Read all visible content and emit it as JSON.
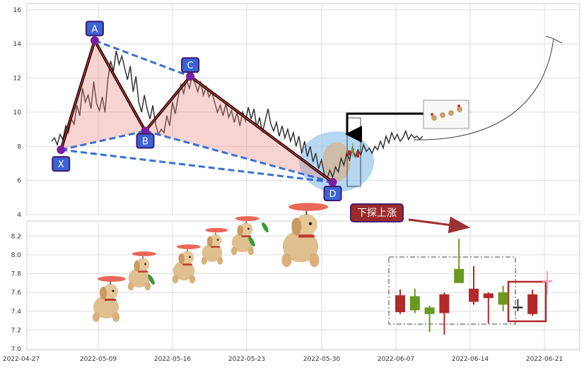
{
  "chart_data": [
    {
      "type": "line",
      "panel": "price",
      "ylim": [
        4,
        16.2
      ],
      "yticks": [
        "4",
        "6",
        "8",
        "10",
        "12",
        "14",
        "16"
      ],
      "series": [
        {
          "values": [
            [
              0.0,
              8.3
            ],
            [
              0.15,
              8.5
            ],
            [
              0.3,
              8.1
            ],
            [
              0.45,
              8.7
            ],
            [
              0.6,
              8.4
            ],
            [
              0.75,
              9.2
            ],
            [
              0.9,
              8.8
            ],
            [
              1.05,
              9.6
            ],
            [
              1.2,
              9.3
            ],
            [
              1.35,
              10.4
            ],
            [
              1.5,
              9.8
            ],
            [
              1.65,
              11.4
            ],
            [
              1.8,
              10.6
            ],
            [
              1.95,
              11.0
            ],
            [
              2.1,
              10.2
            ],
            [
              2.25,
              11.8
            ],
            [
              2.4,
              10.5
            ],
            [
              2.55,
              10.1
            ],
            [
              2.7,
              10.9
            ],
            [
              2.85,
              10.0
            ],
            [
              3.0,
              11.9
            ],
            [
              3.15,
              13.0
            ],
            [
              3.3,
              12.4
            ],
            [
              3.45,
              13.6
            ],
            [
              3.6,
              12.8
            ],
            [
              3.75,
              13.3
            ],
            [
              3.9,
              12.6
            ],
            [
              4.05,
              11.9
            ],
            [
              4.2,
              12.7
            ],
            [
              4.35,
              11.2
            ],
            [
              4.5,
              12.1
            ],
            [
              4.65,
              10.6
            ],
            [
              4.8,
              10.0
            ],
            [
              4.95,
              11.0
            ],
            [
              5.1,
              10.2
            ],
            [
              5.25,
              9.6
            ],
            [
              5.4,
              10.4
            ],
            [
              5.55,
              9.3
            ],
            [
              5.7,
              8.7
            ],
            [
              5.85,
              9.0
            ],
            [
              6.0,
              8.8
            ],
            [
              6.15,
              9.8
            ],
            [
              6.3,
              9.2
            ],
            [
              6.45,
              10.6
            ],
            [
              6.6,
              9.9
            ],
            [
              6.75,
              10.9
            ],
            [
              6.9,
              11.6
            ],
            [
              7.05,
              11.1
            ],
            [
              7.2,
              11.9
            ],
            [
              7.35,
              11.4
            ],
            [
              7.5,
              12.1
            ],
            [
              7.65,
              11.7
            ],
            [
              7.8,
              11.2
            ],
            [
              7.95,
              11.8
            ],
            [
              8.1,
              11.0
            ],
            [
              8.25,
              11.5
            ],
            [
              8.4,
              10.9
            ],
            [
              8.55,
              11.2
            ],
            [
              8.7,
              10.6
            ],
            [
              8.85,
              10.0
            ],
            [
              9.0,
              10.4
            ],
            [
              9.15,
              9.8
            ],
            [
              9.3,
              10.5
            ],
            [
              9.45,
              9.7
            ],
            [
              9.6,
              10.1
            ],
            [
              9.75,
              9.4
            ],
            [
              9.9,
              10.0
            ],
            [
              10.05,
              9.2
            ],
            [
              10.2,
              10.0
            ],
            [
              10.35,
              9.5
            ],
            [
              10.5,
              10.3
            ],
            [
              10.65,
              9.6
            ],
            [
              10.8,
              10.2
            ],
            [
              10.95,
              9.1
            ],
            [
              11.1,
              9.7
            ],
            [
              11.25,
              8.8
            ],
            [
              11.4,
              9.5
            ],
            [
              11.55,
              10.2
            ],
            [
              11.7,
              9.3
            ],
            [
              11.85,
              8.9
            ],
            [
              12.0,
              9.4
            ],
            [
              12.15,
              8.6
            ],
            [
              12.3,
              9.2
            ],
            [
              12.45,
              8.5
            ],
            [
              12.6,
              9.0
            ],
            [
              12.75,
              8.3
            ],
            [
              12.9,
              8.8
            ],
            [
              13.05,
              8.0
            ],
            [
              13.2,
              8.6
            ],
            [
              13.35,
              7.6
            ],
            [
              13.5,
              8.3
            ],
            [
              13.65,
              7.4
            ],
            [
              13.8,
              8.0
            ],
            [
              13.95,
              7.1
            ],
            [
              14.1,
              7.6
            ],
            [
              14.25,
              6.7
            ],
            [
              14.4,
              7.2
            ],
            [
              14.55,
              6.4
            ],
            [
              14.7,
              6.1
            ],
            [
              14.85,
              6.6
            ],
            [
              15.0,
              6.2
            ],
            [
              15.15,
              6.8
            ],
            [
              15.3,
              6.5
            ],
            [
              15.45,
              7.3
            ],
            [
              15.6,
              6.9
            ],
            [
              15.75,
              7.6
            ],
            [
              15.9,
              7.2
            ],
            [
              16.05,
              7.9
            ],
            [
              16.2,
              7.4
            ],
            [
              16.35,
              7.8
            ],
            [
              16.5,
              7.5
            ],
            [
              16.65,
              8.1
            ],
            [
              16.8,
              7.7
            ],
            [
              16.95,
              7.9
            ],
            [
              17.1,
              7.6
            ],
            [
              17.25,
              8.0
            ],
            [
              17.4,
              7.8
            ],
            [
              17.55,
              8.3
            ],
            [
              17.7,
              7.9
            ],
            [
              17.85,
              8.6
            ],
            [
              18.0,
              8.2
            ],
            [
              18.15,
              8.8
            ],
            [
              18.3,
              8.4
            ],
            [
              18.45,
              8.7
            ],
            [
              18.6,
              8.3
            ],
            [
              18.75,
              8.5
            ],
            [
              18.9,
              8.9
            ],
            [
              19.05,
              8.4
            ],
            [
              19.2,
              8.7
            ],
            [
              19.35,
              8.5
            ],
            [
              19.5,
              8.6
            ],
            [
              19.65,
              8.4
            ],
            [
              19.8,
              8.6
            ]
          ]
        }
      ],
      "xabcd_points": [
        {
          "label": "X",
          "x": 0.5,
          "y": 7.8
        },
        {
          "label": "A",
          "x": 2.3,
          "y": 14.2
        },
        {
          "label": "B",
          "x": 5.0,
          "y": 8.9
        },
        {
          "label": "C",
          "x": 7.4,
          "y": 12.1
        },
        {
          "label": "D",
          "x": 15.0,
          "y": 5.9
        }
      ]
    },
    {
      "type": "candlestick",
      "panel": "candles",
      "ylim": [
        7.0,
        8.33
      ],
      "yticks": [
        "7.0",
        "7.2",
        "7.4",
        "7.6",
        "7.8",
        "8.0",
        "8.2"
      ],
      "candles": [
        {
          "o": 7.39,
          "c": 7.57,
          "h": 7.63,
          "l": 7.37,
          "color": "#b22a2a"
        },
        {
          "o": 7.56,
          "c": 7.41,
          "h": 7.64,
          "l": 7.38,
          "color": "#6a9a20"
        },
        {
          "o": 7.44,
          "c": 7.37,
          "h": 7.46,
          "l": 7.18,
          "color": "#6a9a20"
        },
        {
          "o": 7.38,
          "c": 7.58,
          "h": 7.6,
          "l": 7.15,
          "color": "#b22a2a"
        },
        {
          "o": 7.85,
          "c": 7.7,
          "h": 8.17,
          "l": 7.7,
          "color": "#6a9a20"
        },
        {
          "o": 7.5,
          "c": 7.64,
          "h": 7.88,
          "l": 7.47,
          "color": "#b22a2a"
        },
        {
          "o": 7.54,
          "c": 7.59,
          "h": 7.6,
          "l": 7.27,
          "color": "#b22a2a"
        },
        {
          "o": 7.6,
          "c": 7.47,
          "h": 7.67,
          "l": 7.4,
          "color": "#6a9a20"
        },
        {
          "o": 7.43,
          "c": 7.45,
          "h": 7.53,
          "l": 7.4,
          "color": "#444444"
        },
        {
          "o": 7.37,
          "c": 7.58,
          "h": 7.63,
          "l": 7.35,
          "color": "#b22a2a"
        },
        {
          "o": 7.71,
          "c": 7.73,
          "h": 7.83,
          "l": 7.58,
          "color": "#f0a0b0"
        }
      ]
    }
  ],
  "x_axis": {
    "ticks": [
      "2022-04-27",
      "2022-05-09",
      "2022-05-16",
      "2022-05-23",
      "2022-05-30",
      "2022-06-07",
      "2022-06-14",
      "2022-06-21"
    ]
  },
  "annotation": {
    "label": "下探上涨"
  }
}
